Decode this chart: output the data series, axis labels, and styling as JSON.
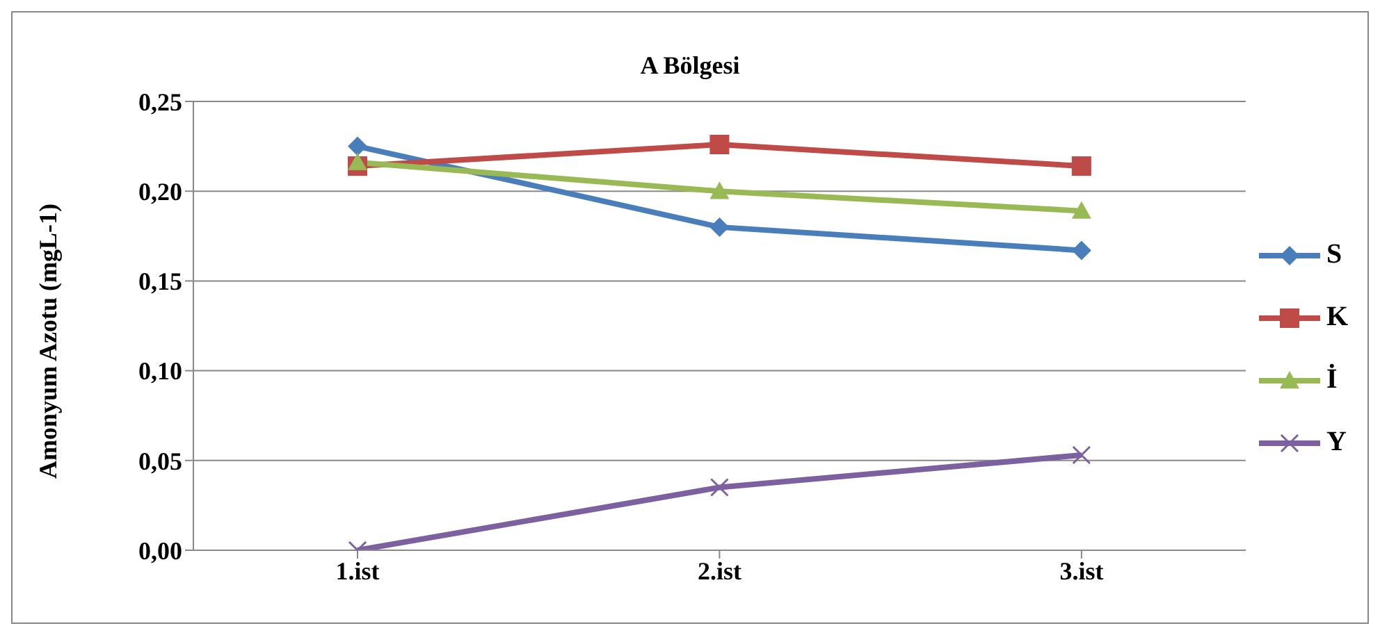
{
  "chart_data": {
    "type": "line",
    "title": "A Bölgesi",
    "ylabel": "Amonyum Azotu (mgL-1)",
    "categories": [
      "1.ist",
      "2.ist",
      "3.ist"
    ],
    "series": [
      {
        "name": "S",
        "color": "#4a7ebb",
        "marker": "diamond",
        "values": [
          0.225,
          0.18,
          0.167
        ]
      },
      {
        "name": "K",
        "color": "#be4b48",
        "marker": "square",
        "values": [
          0.214,
          0.226,
          0.214
        ]
      },
      {
        "name": "İ",
        "color": "#98b954",
        "marker": "triangle",
        "values": [
          0.216,
          0.2,
          0.189
        ]
      },
      {
        "name": "Y",
        "color": "#7d60a0",
        "marker": "cross",
        "values": [
          0,
          0.035,
          0.053
        ]
      }
    ],
    "ylim": [
      0,
      0.25
    ],
    "yticks": [
      {
        "value": 0,
        "label": "0,00"
      },
      {
        "value": 0.05,
        "label": "0,05"
      },
      {
        "value": 0.1,
        "label": "0,10"
      },
      {
        "value": 0.15,
        "label": "0,15"
      },
      {
        "value": 0.2,
        "label": "0,20"
      },
      {
        "value": 0.25,
        "label": "0,25"
      }
    ],
    "grid": "y",
    "legend": "right"
  }
}
